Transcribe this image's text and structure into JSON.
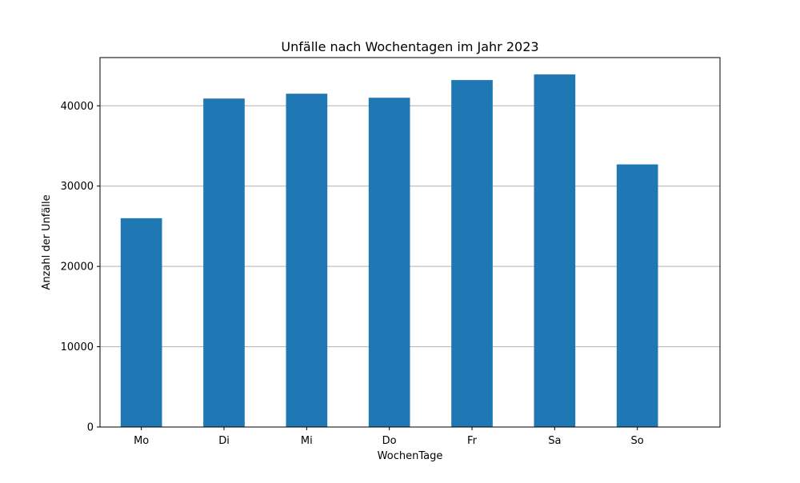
{
  "chart_data": {
    "type": "bar",
    "title": "Unfälle nach Wochentagen im Jahr 2023",
    "xlabel": "WochenTage",
    "ylabel": "Anzahl der Unfälle",
    "categories": [
      "Mo",
      "Di",
      "Mi",
      "Do",
      "Fr",
      "Sa",
      "So"
    ],
    "values": [
      26000,
      40900,
      41500,
      41000,
      43200,
      43900,
      32700
    ],
    "ylim": [
      0,
      46000
    ],
    "yticks": [
      0,
      10000,
      20000,
      30000,
      40000
    ],
    "ytick_labels": [
      "0",
      "10000",
      "20000",
      "30000",
      "40000"
    ],
    "grid": "horizontal",
    "colors": {
      "bar": "#1f77b4",
      "grid": "#b0b0b0",
      "axis": "#000000"
    }
  }
}
